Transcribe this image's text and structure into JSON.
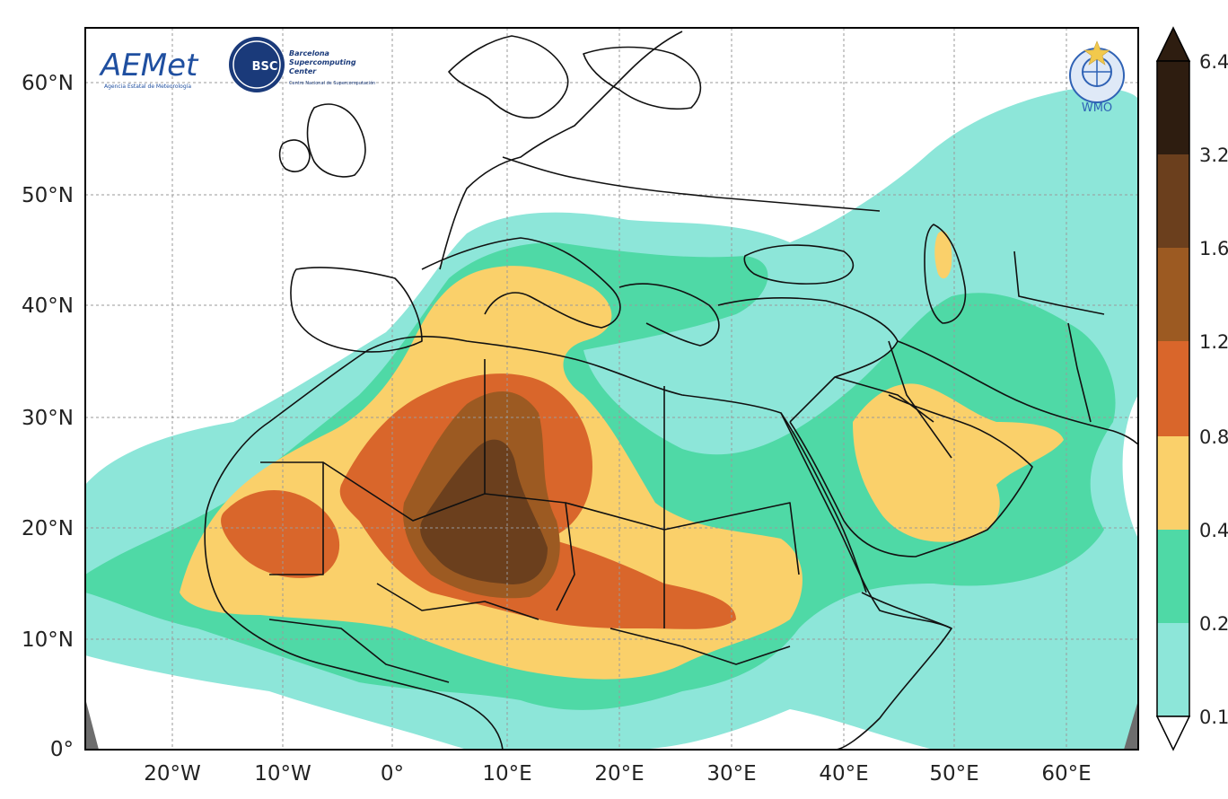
{
  "map": {
    "x_ticks": [
      "20°W",
      "10°W",
      "0°",
      "10°E",
      "20°E",
      "30°E",
      "40°E",
      "50°E",
      "60°E"
    ],
    "y_ticks": [
      "60°N",
      "50°N",
      "40°N",
      "30°N",
      "20°N",
      "10°N",
      "0°"
    ],
    "colors": {
      "ocean": "#ffffff",
      "c1": "#8de6d9",
      "c2": "#4fd9a6",
      "c3": "#fad06a",
      "c4": "#d9662b",
      "c5": "#9c5a22",
      "c6": "#6b3f1d",
      "c7": "#2e1d10",
      "border": "#111111",
      "grid": "#9a9a9a"
    }
  },
  "colorbar": {
    "labels": [
      "6.4",
      "3.2",
      "1.6",
      "1.2",
      "0.8",
      "0.4",
      "0.2",
      "0.1"
    ]
  },
  "logos": {
    "aemet": {
      "name": "AEMet",
      "subtitle": "Agencia Estatal de Meteorología"
    },
    "bsc": {
      "badge": "BSC",
      "line1": "Barcelona",
      "line2": "Supercomputing",
      "line3": "Center",
      "line4": "Centro Nacional de Supercomputación"
    },
    "wmo": {
      "name": "WMO"
    }
  }
}
